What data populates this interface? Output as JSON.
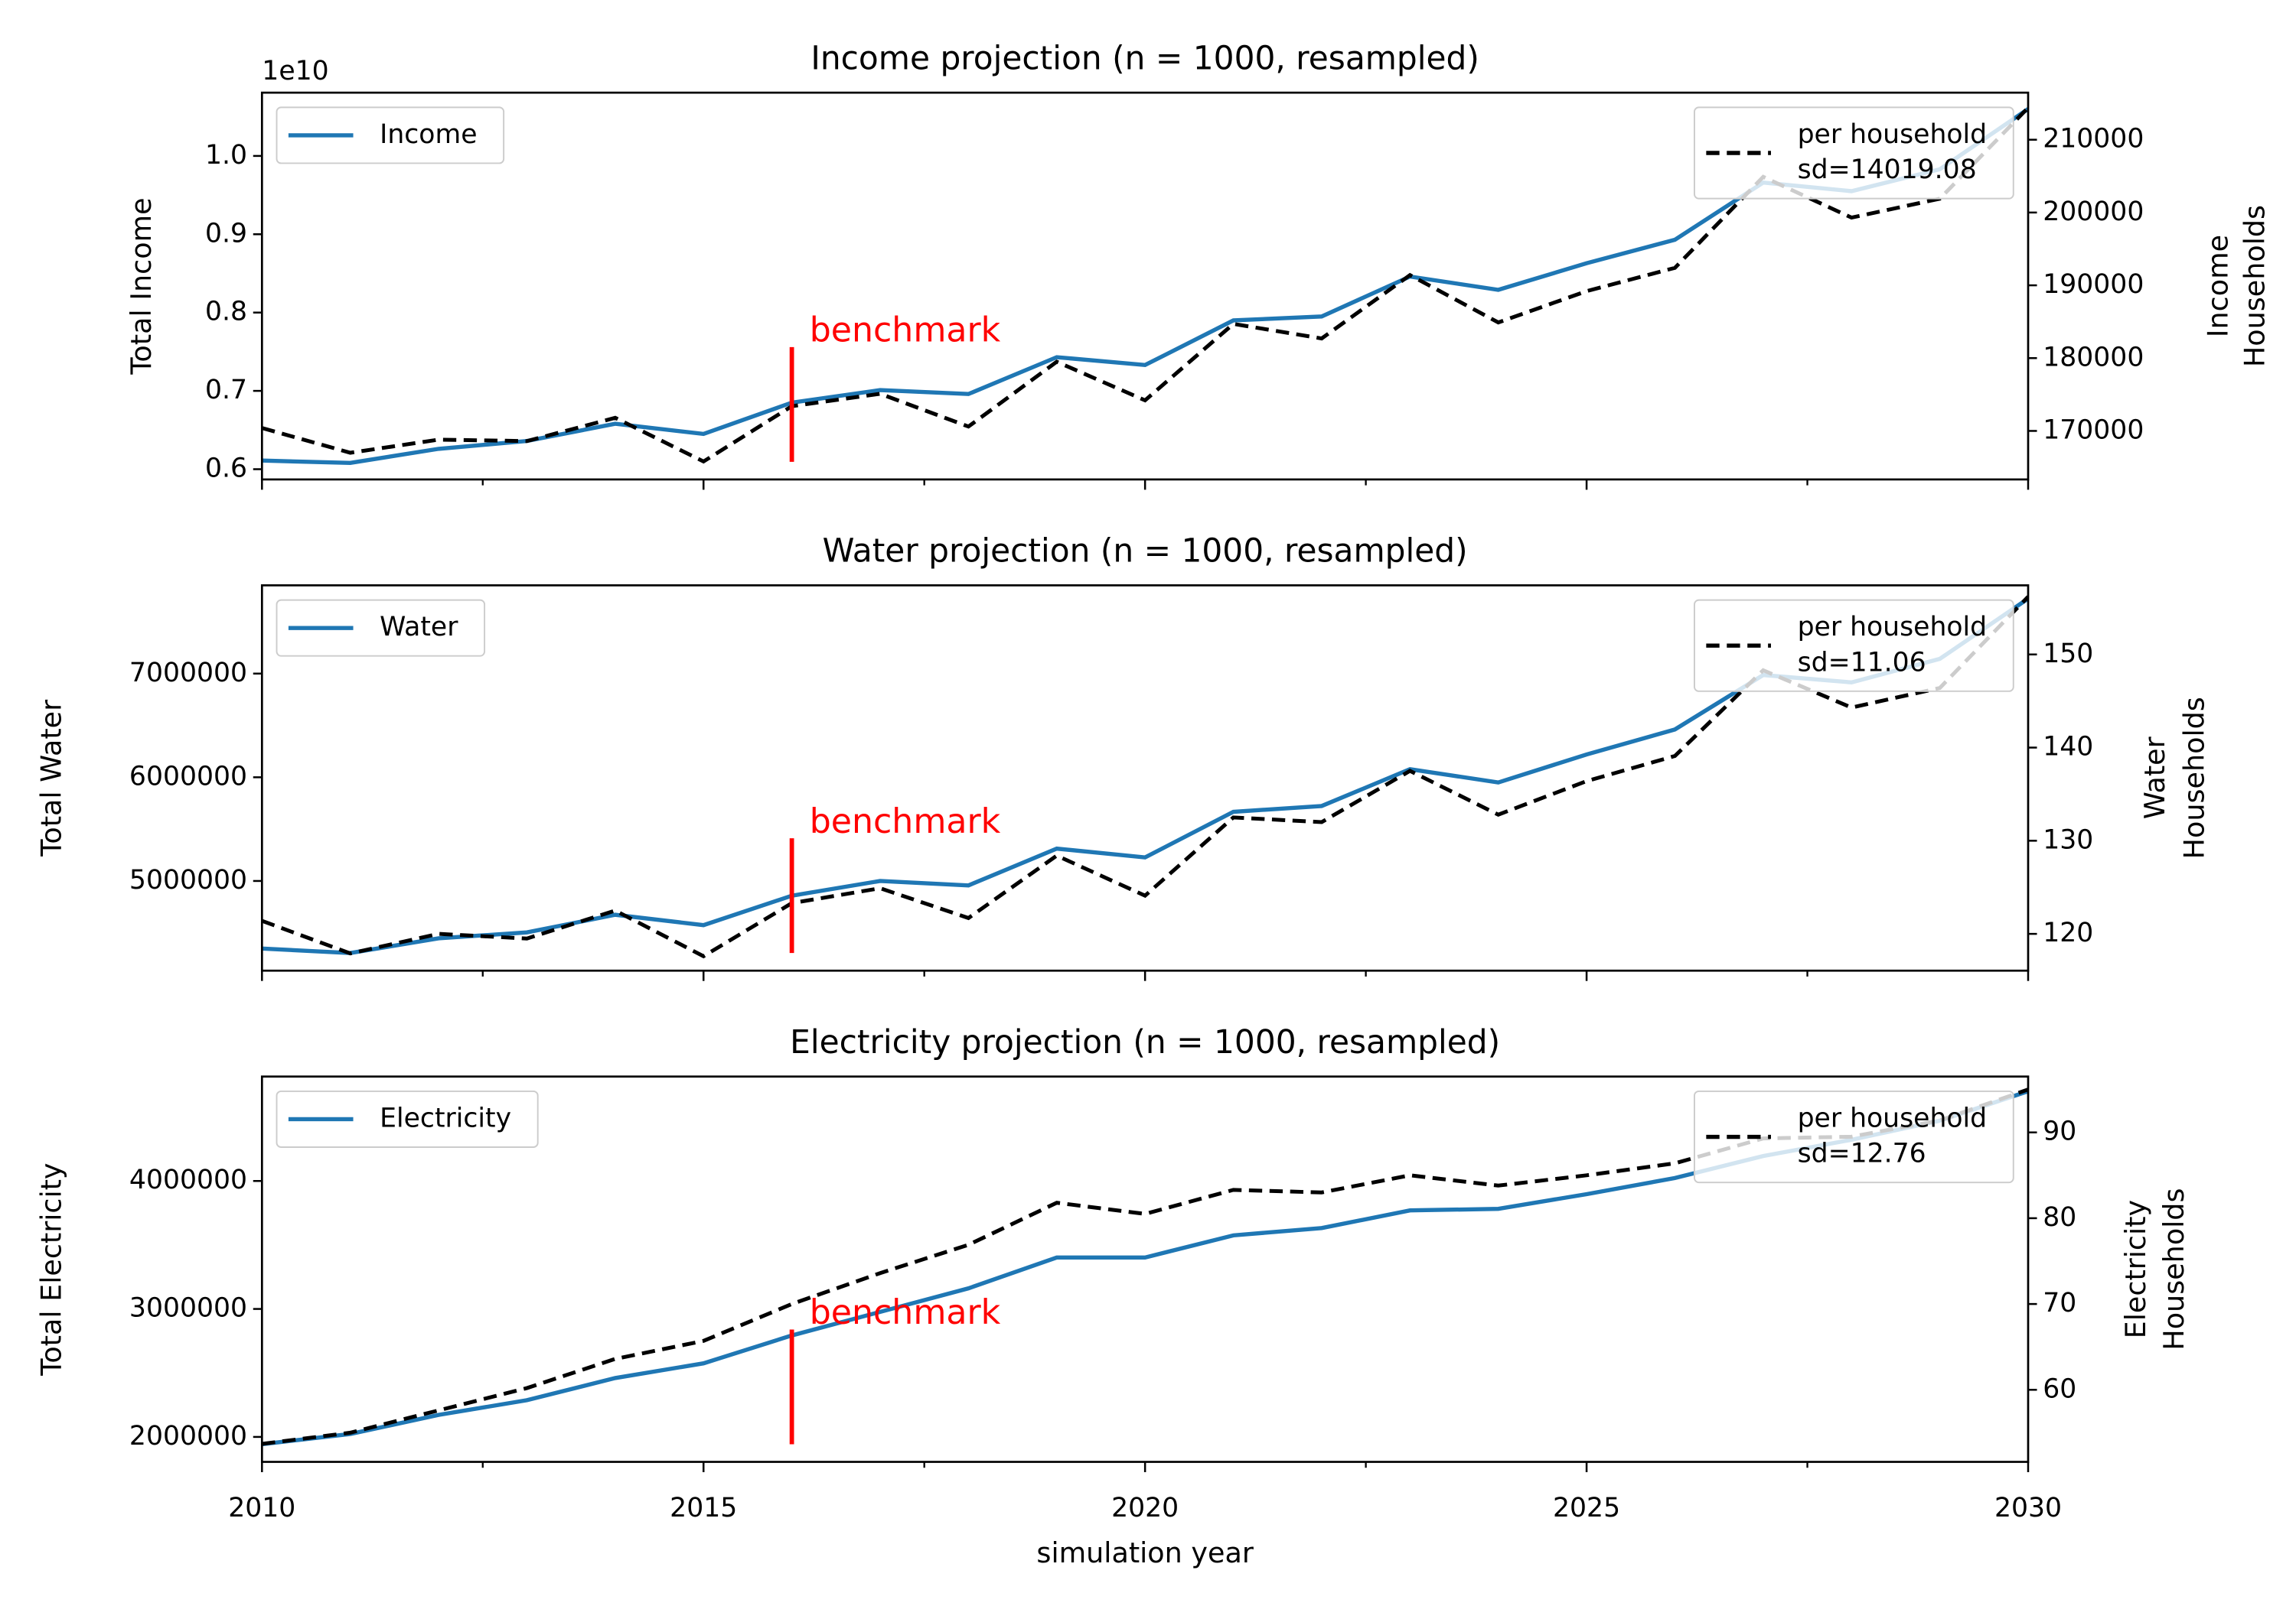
{
  "chart_data": [
    {
      "type": "line",
      "title": "Income projection (n = 1000, resampled)",
      "ylabel": "Total Income",
      "y2label": [
        "Income",
        "Households"
      ],
      "offset_text": "1e10",
      "x": [
        2010,
        2011,
        2012,
        2013,
        2014,
        2015,
        2016,
        2017,
        2018,
        2019,
        2020,
        2021,
        2022,
        2023,
        2024,
        2025,
        2026,
        2027,
        2028,
        2029,
        2030
      ],
      "xlim": [
        2010,
        2030
      ],
      "xticks": [
        2010,
        2015,
        2020,
        2025,
        2030
      ],
      "xminorticks": [
        2012.5,
        2017.5,
        2022.5,
        2027.5
      ],
      "show_xtick_labels": false,
      "ylim": [
        0.5869,
        1.0808
      ],
      "yticks": [
        0.6,
        0.7,
        0.8,
        0.9,
        {
          "value": 1,
          "label": "1.0"
        }
      ],
      "y2lim": [
        163333,
        216465
      ],
      "y2ticks": [
        170000,
        180000,
        190000,
        200000,
        210000
      ],
      "series": [
        {
          "name": "Income",
          "color": "#1f77b4",
          "style": "solid",
          "legend": "upper left",
          "values": [
            0.611,
            0.608,
            0.626,
            0.636,
            0.658,
            0.645,
            0.685,
            0.701,
            0.696,
            0.743,
            0.733,
            0.79,
            0.795,
            0.846,
            0.829,
            0.863,
            0.893,
            0.966,
            0.955,
            0.983,
            1.06
          ]
        },
        {
          "name": "per household",
          "note": "sd=14019.08",
          "color": "#000000",
          "style": "dashed",
          "axis": "y2",
          "legend": "upper right",
          "values": [
            170400,
            167000,
            168800,
            168600,
            171800,
            165800,
            173400,
            175100,
            170600,
            179500,
            174200,
            184700,
            182700,
            191400,
            184900,
            189200,
            192400,
            204900,
            199300,
            201900,
            214400
          ]
        }
      ],
      "annotation": {
        "text": "benchmark",
        "x": 2016,
        "color": "#ff0000"
      }
    },
    {
      "type": "line",
      "title": "Water projection (n = 1000, resampled)",
      "ylabel": "Total Water",
      "y2label": [
        "Water",
        "Households"
      ],
      "x": [
        2010,
        2011,
        2012,
        2013,
        2014,
        2015,
        2016,
        2017,
        2018,
        2019,
        2020,
        2021,
        2022,
        2023,
        2024,
        2025,
        2026,
        2027,
        2028,
        2029,
        2030
      ],
      "xlim": [
        2010,
        2030
      ],
      "xticks": [
        2010,
        2015,
        2020,
        2025,
        2030
      ],
      "xminorticks": [
        2012.5,
        2017.5,
        2022.5,
        2027.5
      ],
      "show_xtick_labels": false,
      "ylim": [
        4135000,
        7851000
      ],
      "yticks": [
        5000000,
        6000000,
        7000000
      ],
      "y2lim": [
        116.05,
        157.42
      ],
      "y2ticks": [
        120,
        130,
        140,
        150
      ],
      "series": [
        {
          "name": "Water",
          "color": "#1f77b4",
          "style": "solid",
          "legend": "upper left",
          "values": [
            4348000,
            4305000,
            4447000,
            4504000,
            4674000,
            4574000,
            4858000,
            5000000,
            4957000,
            5312000,
            5227000,
            5667000,
            5723000,
            6078000,
            5950000,
            6220000,
            6461000,
            6986000,
            6915000,
            7142000,
            7723000
          ]
        },
        {
          "name": "per household",
          "note": "sd=11.06",
          "color": "#000000",
          "style": "dashed",
          "axis": "y2",
          "legend": "upper right",
          "values": [
            121.4,
            117.9,
            120.0,
            119.5,
            122.5,
            117.6,
            123.3,
            124.9,
            121.7,
            128.4,
            124.1,
            132.5,
            132.0,
            137.5,
            132.8,
            136.4,
            139.1,
            148.3,
            144.3,
            146.4,
            156.2
          ]
        }
      ],
      "annotation": {
        "text": "benchmark",
        "x": 2016,
        "color": "#ff0000"
      }
    },
    {
      "type": "line",
      "title": "Electricity projection (n = 1000, resampled)",
      "ylabel": "Total Electricity",
      "y2label": [
        "Electricity",
        "Households"
      ],
      "xlabel": "simulation year",
      "x": [
        2010,
        2011,
        2012,
        2013,
        2014,
        2015,
        2016,
        2017,
        2018,
        2019,
        2020,
        2021,
        2022,
        2023,
        2024,
        2025,
        2026,
        2027,
        2028,
        2029,
        2030
      ],
      "xlim": [
        2010,
        2030
      ],
      "xticks": [
        2010,
        2015,
        2020,
        2025,
        2030
      ],
      "xminorticks": [
        2012.5,
        2017.5,
        2022.5,
        2027.5
      ],
      "show_xtick_labels": true,
      "ylim": [
        1805000,
        4816000
      ],
      "yticks": [
        2000000,
        3000000,
        4000000
      ],
      "y2lim": [
        51.6,
        96.51
      ],
      "y2ticks": [
        60,
        70,
        80,
        90
      ],
      "series": [
        {
          "name": "Electricity",
          "color": "#1f77b4",
          "style": "solid",
          "legend": "upper left",
          "values": [
            1943000,
            2023000,
            2172000,
            2287000,
            2460000,
            2575000,
            2793000,
            2977000,
            3161000,
            3402000,
            3402000,
            3575000,
            3632000,
            3770000,
            3782000,
            3897000,
            4023000,
            4195000,
            4322000,
            4471000,
            4701000
          ]
        },
        {
          "name": "per household",
          "note": "sd=12.76",
          "color": "#000000",
          "style": "dashed",
          "axis": "y2",
          "legend": "upper right",
          "values": [
            53.7,
            55.0,
            57.6,
            60.2,
            63.6,
            65.7,
            70.0,
            73.6,
            76.9,
            81.8,
            80.5,
            83.3,
            83.0,
            85.0,
            83.8,
            85.0,
            86.4,
            89.3,
            89.5,
            91.4,
            95.0
          ]
        }
      ],
      "annotation": {
        "text": "benchmark",
        "x": 2016,
        "color": "#ff0000"
      }
    }
  ]
}
